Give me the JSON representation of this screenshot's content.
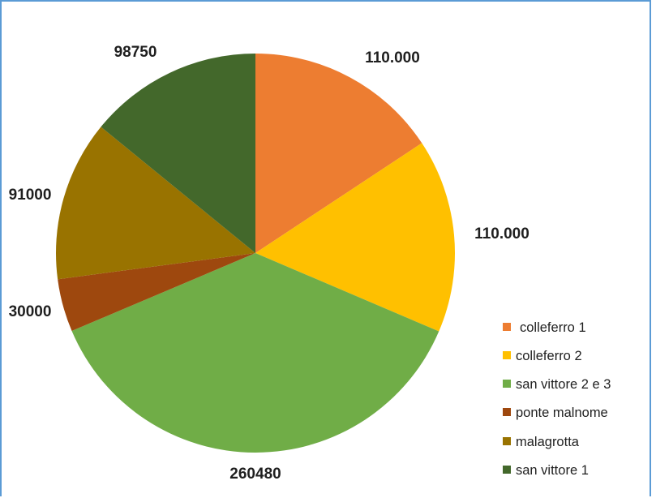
{
  "chart_data": {
    "type": "pie",
    "title": "",
    "categories": [
      "colleferro 1",
      "colleferro 2",
      "san vittore 2 e 3",
      "ponte malnome",
      "malagrotta",
      "san vittore 1"
    ],
    "values": [
      110000,
      110000,
      260480,
      30000,
      91000,
      98750
    ],
    "data_labels": [
      "110.000",
      "110.000",
      "260480",
      "30000",
      "91000",
      "98750"
    ],
    "colors": [
      "#ed7d31",
      "#ffc000",
      "#70ad47",
      "#9e480e",
      "#997300",
      "#43682b"
    ],
    "legend": {
      "position": "bottom-right",
      "entries": [
        "colleferro 1",
        "colleferro 2",
        "san vittore 2 e 3",
        "ponte malnome",
        "malagrotta",
        "san vittore 1"
      ]
    },
    "start_angle": "12 o'clock",
    "direction": "clockwise"
  }
}
